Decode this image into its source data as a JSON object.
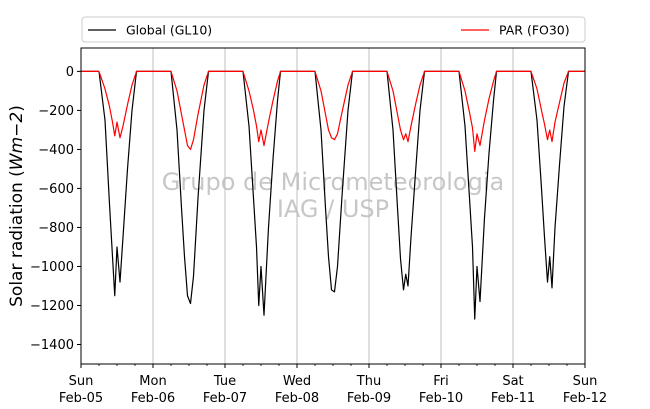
{
  "chart_data": {
    "type": "line",
    "title": "",
    "xlabel": "",
    "ylabel": "Solar radiation (Wm−2)",
    "ylabel_parts": {
      "prefix": "Solar radiation (",
      "math": "Wm−2",
      "suffix": ")"
    },
    "xlim": [
      "2023-02-05 00:00",
      "2023-02-12 00:00"
    ],
    "ylim": [
      -1500,
      120
    ],
    "yticks": [
      0,
      -200,
      -400,
      -600,
      -800,
      -1000,
      -1200,
      -1400
    ],
    "xticks": [
      {
        "x": "2023-02-05",
        "day": "Sun",
        "date": "Feb-05"
      },
      {
        "x": "2023-02-06",
        "day": "Mon",
        "date": "Feb-06"
      },
      {
        "x": "2023-02-07",
        "day": "Tue",
        "date": "Feb-07"
      },
      {
        "x": "2023-02-08",
        "day": "Wed",
        "date": "Feb-08"
      },
      {
        "x": "2023-02-09",
        "day": "Thu",
        "date": "Feb-09"
      },
      {
        "x": "2023-02-10",
        "day": "Fri",
        "date": "Feb-10"
      },
      {
        "x": "2023-02-11",
        "day": "Sat",
        "date": "Feb-11"
      },
      {
        "x": "2023-02-12",
        "day": "Sun",
        "date": "Feb-12"
      }
    ],
    "grid": "vertical at midnights",
    "legend": {
      "placement": "top, outside",
      "columns": 2
    },
    "watermark": [
      "Grupo de Micrometeorologia",
      "IAG / USP"
    ],
    "series": [
      {
        "name": "Global (GL10)",
        "color": "#000000",
        "points": [
          {
            "x": "2023-02-05 06:00",
            "y": 0
          },
          {
            "x": "2023-02-05 08:00",
            "y": -250
          },
          {
            "x": "2023-02-05 09:30",
            "y": -680
          },
          {
            "x": "2023-02-05 10:30",
            "y": -950
          },
          {
            "x": "2023-02-05 11:15",
            "y": -1150
          },
          {
            "x": "2023-02-05 12:00",
            "y": -900
          },
          {
            "x": "2023-02-05 13:00",
            "y": -1080
          },
          {
            "x": "2023-02-05 14:00",
            "y": -850
          },
          {
            "x": "2023-02-05 15:30",
            "y": -500
          },
          {
            "x": "2023-02-05 17:00",
            "y": -200
          },
          {
            "x": "2023-02-05 18:30",
            "y": 0
          },
          {
            "x": "2023-02-06 06:00",
            "y": 0
          },
          {
            "x": "2023-02-06 08:00",
            "y": -300
          },
          {
            "x": "2023-02-06 09:30",
            "y": -700
          },
          {
            "x": "2023-02-06 10:30",
            "y": -950
          },
          {
            "x": "2023-02-06 11:30",
            "y": -1150
          },
          {
            "x": "2023-02-06 12:30",
            "y": -1190
          },
          {
            "x": "2023-02-06 13:30",
            "y": -1050
          },
          {
            "x": "2023-02-06 15:00",
            "y": -650
          },
          {
            "x": "2023-02-06 17:00",
            "y": -200
          },
          {
            "x": "2023-02-06 18:30",
            "y": 0
          },
          {
            "x": "2023-02-07 06:00",
            "y": 0
          },
          {
            "x": "2023-02-07 08:00",
            "y": -280
          },
          {
            "x": "2023-02-07 09:30",
            "y": -650
          },
          {
            "x": "2023-02-07 10:30",
            "y": -900
          },
          {
            "x": "2023-02-07 11:15",
            "y": -1200
          },
          {
            "x": "2023-02-07 12:00",
            "y": -1000
          },
          {
            "x": "2023-02-07 13:00",
            "y": -1250
          },
          {
            "x": "2023-02-07 14:30",
            "y": -800
          },
          {
            "x": "2023-02-07 16:00",
            "y": -450
          },
          {
            "x": "2023-02-07 17:30",
            "y": -150
          },
          {
            "x": "2023-02-07 18:30",
            "y": 0
          },
          {
            "x": "2023-02-08 06:00",
            "y": 0
          },
          {
            "x": "2023-02-08 08:00",
            "y": -300
          },
          {
            "x": "2023-02-08 09:30",
            "y": -700
          },
          {
            "x": "2023-02-08 10:30",
            "y": -950
          },
          {
            "x": "2023-02-08 11:30",
            "y": -1120
          },
          {
            "x": "2023-02-08 12:30",
            "y": -1130
          },
          {
            "x": "2023-02-08 13:30",
            "y": -1000
          },
          {
            "x": "2023-02-08 15:00",
            "y": -640
          },
          {
            "x": "2023-02-08 17:00",
            "y": -200
          },
          {
            "x": "2023-02-08 18:30",
            "y": 0
          },
          {
            "x": "2023-02-09 06:00",
            "y": 0
          },
          {
            "x": "2023-02-09 08:00",
            "y": -300
          },
          {
            "x": "2023-02-09 09:30",
            "y": -700
          },
          {
            "x": "2023-02-09 10:30",
            "y": -960
          },
          {
            "x": "2023-02-09 11:30",
            "y": -1120
          },
          {
            "x": "2023-02-09 12:15",
            "y": -1040
          },
          {
            "x": "2023-02-09 13:00",
            "y": -1100
          },
          {
            "x": "2023-02-09 14:00",
            "y": -850
          },
          {
            "x": "2023-02-09 15:30",
            "y": -520
          },
          {
            "x": "2023-02-09 17:00",
            "y": -200
          },
          {
            "x": "2023-02-09 18:30",
            "y": 0
          },
          {
            "x": "2023-02-10 06:00",
            "y": 0
          },
          {
            "x": "2023-02-10 08:00",
            "y": -280
          },
          {
            "x": "2023-02-10 09:30",
            "y": -650
          },
          {
            "x": "2023-02-10 10:30",
            "y": -900
          },
          {
            "x": "2023-02-10 11:15",
            "y": -1270
          },
          {
            "x": "2023-02-10 12:00",
            "y": -1000
          },
          {
            "x": "2023-02-10 13:00",
            "y": -1180
          },
          {
            "x": "2023-02-10 14:30",
            "y": -750
          },
          {
            "x": "2023-02-10 16:00",
            "y": -420
          },
          {
            "x": "2023-02-10 17:30",
            "y": -150
          },
          {
            "x": "2023-02-10 18:30",
            "y": 0
          },
          {
            "x": "2023-02-11 06:00",
            "y": 0
          },
          {
            "x": "2023-02-11 08:00",
            "y": -250
          },
          {
            "x": "2023-02-11 09:30",
            "y": -600
          },
          {
            "x": "2023-02-11 10:30",
            "y": -850
          },
          {
            "x": "2023-02-11 11:30",
            "y": -1080
          },
          {
            "x": "2023-02-11 12:15",
            "y": -950
          },
          {
            "x": "2023-02-11 13:00",
            "y": -1110
          },
          {
            "x": "2023-02-11 14:00",
            "y": -800
          },
          {
            "x": "2023-02-11 15:30",
            "y": -480
          },
          {
            "x": "2023-02-11 17:00",
            "y": -180
          },
          {
            "x": "2023-02-11 18:30",
            "y": 0
          },
          {
            "x": "2023-02-12 00:00",
            "y": 0
          }
        ]
      },
      {
        "name": "PAR (FO30)",
        "color": "#ff0000",
        "points": [
          {
            "x": "2023-02-05 06:00",
            "y": 0
          },
          {
            "x": "2023-02-05 08:00",
            "y": -90
          },
          {
            "x": "2023-02-05 09:30",
            "y": -180
          },
          {
            "x": "2023-02-05 10:30",
            "y": -260
          },
          {
            "x": "2023-02-05 11:15",
            "y": -330
          },
          {
            "x": "2023-02-05 12:00",
            "y": -260
          },
          {
            "x": "2023-02-05 13:00",
            "y": -340
          },
          {
            "x": "2023-02-05 14:00",
            "y": -280
          },
          {
            "x": "2023-02-05 15:30",
            "y": -170
          },
          {
            "x": "2023-02-05 17:00",
            "y": -70
          },
          {
            "x": "2023-02-05 18:30",
            "y": 0
          },
          {
            "x": "2023-02-06 06:00",
            "y": 0
          },
          {
            "x": "2023-02-06 08:00",
            "y": -100
          },
          {
            "x": "2023-02-06 09:30",
            "y": -220
          },
          {
            "x": "2023-02-06 10:30",
            "y": -300
          },
          {
            "x": "2023-02-06 11:30",
            "y": -380
          },
          {
            "x": "2023-02-06 12:30",
            "y": -400
          },
          {
            "x": "2023-02-06 13:30",
            "y": -350
          },
          {
            "x": "2023-02-06 15:00",
            "y": -220
          },
          {
            "x": "2023-02-06 17:00",
            "y": -70
          },
          {
            "x": "2023-02-06 18:30",
            "y": 0
          },
          {
            "x": "2023-02-07 06:00",
            "y": 0
          },
          {
            "x": "2023-02-07 08:00",
            "y": -100
          },
          {
            "x": "2023-02-07 09:30",
            "y": -200
          },
          {
            "x": "2023-02-07 10:30",
            "y": -280
          },
          {
            "x": "2023-02-07 11:15",
            "y": -360
          },
          {
            "x": "2023-02-07 12:00",
            "y": -300
          },
          {
            "x": "2023-02-07 13:00",
            "y": -380
          },
          {
            "x": "2023-02-07 14:30",
            "y": -260
          },
          {
            "x": "2023-02-07 16:00",
            "y": -150
          },
          {
            "x": "2023-02-07 17:30",
            "y": -50
          },
          {
            "x": "2023-02-07 18:30",
            "y": 0
          },
          {
            "x": "2023-02-08 06:00",
            "y": 0
          },
          {
            "x": "2023-02-08 08:00",
            "y": -100
          },
          {
            "x": "2023-02-08 09:30",
            "y": -220
          },
          {
            "x": "2023-02-08 10:30",
            "y": -300
          },
          {
            "x": "2023-02-08 11:30",
            "y": -340
          },
          {
            "x": "2023-02-08 12:30",
            "y": -350
          },
          {
            "x": "2023-02-08 13:30",
            "y": -320
          },
          {
            "x": "2023-02-08 15:00",
            "y": -210
          },
          {
            "x": "2023-02-08 17:00",
            "y": -70
          },
          {
            "x": "2023-02-08 18:30",
            "y": 0
          },
          {
            "x": "2023-02-09 06:00",
            "y": 0
          },
          {
            "x": "2023-02-09 08:00",
            "y": -100
          },
          {
            "x": "2023-02-09 09:30",
            "y": -220
          },
          {
            "x": "2023-02-09 10:30",
            "y": -300
          },
          {
            "x": "2023-02-09 11:30",
            "y": -350
          },
          {
            "x": "2023-02-09 12:15",
            "y": -320
          },
          {
            "x": "2023-02-09 13:00",
            "y": -360
          },
          {
            "x": "2023-02-09 14:00",
            "y": -280
          },
          {
            "x": "2023-02-09 15:30",
            "y": -170
          },
          {
            "x": "2023-02-09 17:00",
            "y": -70
          },
          {
            "x": "2023-02-09 18:30",
            "y": 0
          },
          {
            "x": "2023-02-10 06:00",
            "y": 0
          },
          {
            "x": "2023-02-10 08:00",
            "y": -100
          },
          {
            "x": "2023-02-10 09:30",
            "y": -210
          },
          {
            "x": "2023-02-10 10:30",
            "y": -290
          },
          {
            "x": "2023-02-10 11:15",
            "y": -410
          },
          {
            "x": "2023-02-10 12:00",
            "y": -320
          },
          {
            "x": "2023-02-10 13:00",
            "y": -380
          },
          {
            "x": "2023-02-10 14:30",
            "y": -250
          },
          {
            "x": "2023-02-10 16:00",
            "y": -140
          },
          {
            "x": "2023-02-10 17:30",
            "y": -50
          },
          {
            "x": "2023-02-10 18:30",
            "y": 0
          },
          {
            "x": "2023-02-11 06:00",
            "y": 0
          },
          {
            "x": "2023-02-11 08:00",
            "y": -90
          },
          {
            "x": "2023-02-11 09:30",
            "y": -200
          },
          {
            "x": "2023-02-11 10:30",
            "y": -270
          },
          {
            "x": "2023-02-11 11:30",
            "y": -350
          },
          {
            "x": "2023-02-11 12:15",
            "y": -300
          },
          {
            "x": "2023-02-11 13:00",
            "y": -360
          },
          {
            "x": "2023-02-11 14:00",
            "y": -260
          },
          {
            "x": "2023-02-11 15:30",
            "y": -160
          },
          {
            "x": "2023-02-11 17:00",
            "y": -60
          },
          {
            "x": "2023-02-11 18:30",
            "y": 0
          },
          {
            "x": "2023-02-12 00:00",
            "y": 0
          }
        ]
      }
    ]
  }
}
